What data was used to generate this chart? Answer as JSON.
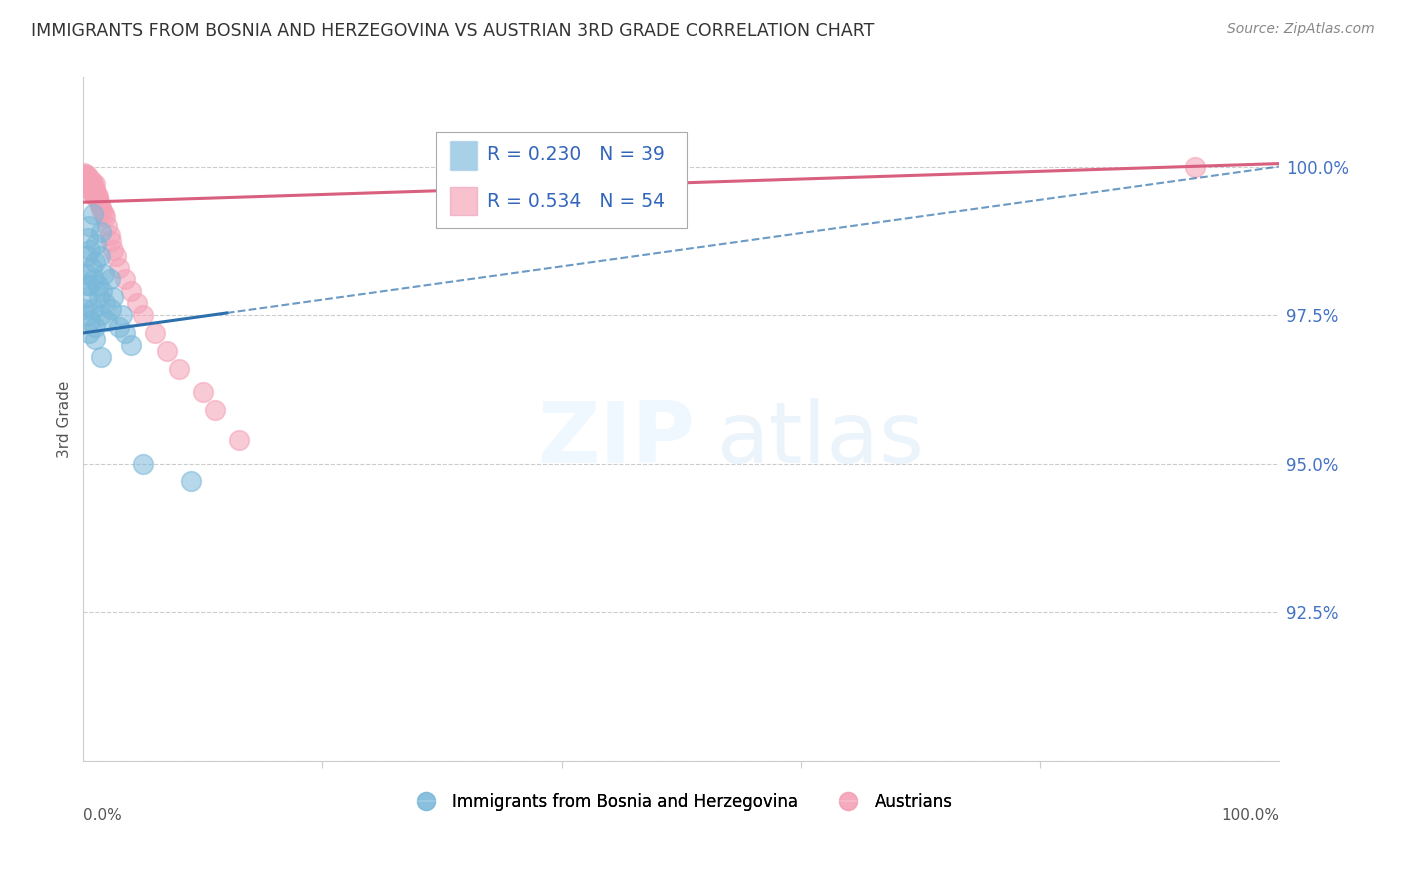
{
  "title": "IMMIGRANTS FROM BOSNIA AND HERZEGOVINA VS AUSTRIAN 3RD GRADE CORRELATION CHART",
  "source": "Source: ZipAtlas.com",
  "ylabel": "3rd Grade",
  "yticks": [
    90.0,
    92.5,
    95.0,
    97.5,
    100.0
  ],
  "ytick_labels": [
    "",
    "92.5%",
    "95.0%",
    "97.5%",
    "100.0%"
  ],
  "xlim": [
    0.0,
    100.0
  ],
  "ylim": [
    90.0,
    101.5
  ],
  "legend_blue_r": "R = 0.230",
  "legend_blue_n": "N = 39",
  "legend_pink_r": "R = 0.534",
  "legend_pink_n": "N = 54",
  "blue_color": "#7ab8d9",
  "pink_color": "#f4a0b5",
  "blue_line_color": "#2c6fad",
  "pink_line_color": "#d95f7f",
  "legend_label_blue": "Immigrants from Bosnia and Herzegovina",
  "legend_label_pink": "Austrians",
  "blue_x": [
    0.2,
    0.3,
    0.3,
    0.4,
    0.4,
    0.5,
    0.5,
    0.5,
    0.6,
    0.6,
    0.7,
    0.8,
    0.8,
    0.9,
    1.0,
    1.0,
    1.1,
    1.2,
    1.3,
    1.4,
    1.5,
    1.5,
    1.6,
    1.7,
    1.8,
    2.0,
    2.2,
    2.3,
    2.5,
    3.0,
    3.2,
    3.5,
    4.0,
    0.1,
    0.2,
    1.0,
    1.5,
    5.0,
    9.0
  ],
  "blue_y": [
    98.2,
    97.8,
    98.5,
    97.5,
    98.8,
    97.2,
    98.0,
    99.0,
    97.4,
    98.6,
    98.3,
    97.6,
    99.2,
    98.1,
    97.3,
    98.4,
    98.7,
    98.0,
    97.8,
    98.5,
    97.5,
    98.9,
    97.9,
    98.2,
    97.7,
    97.4,
    98.1,
    97.6,
    97.8,
    97.3,
    97.5,
    97.2,
    97.0,
    97.6,
    98.0,
    97.1,
    96.8,
    95.0,
    94.7
  ],
  "pink_x": [
    0.1,
    0.1,
    0.2,
    0.2,
    0.3,
    0.3,
    0.3,
    0.4,
    0.4,
    0.4,
    0.5,
    0.5,
    0.5,
    0.5,
    0.6,
    0.6,
    0.7,
    0.7,
    0.7,
    0.8,
    0.8,
    0.8,
    0.9,
    0.9,
    1.0,
    1.0,
    1.0,
    1.1,
    1.1,
    1.2,
    1.2,
    1.3,
    1.4,
    1.5,
    1.6,
    1.7,
    1.8,
    2.0,
    2.2,
    2.3,
    2.5,
    2.7,
    3.0,
    3.5,
    4.0,
    4.5,
    5.0,
    6.0,
    7.0,
    8.0,
    10.0,
    11.0,
    13.0,
    93.0
  ],
  "pink_y": [
    99.85,
    99.9,
    99.8,
    99.85,
    99.75,
    99.8,
    99.85,
    99.7,
    99.75,
    99.8,
    99.7,
    99.75,
    99.65,
    99.8,
    99.6,
    99.7,
    99.65,
    99.75,
    99.6,
    99.55,
    99.65,
    99.7,
    99.5,
    99.6,
    99.55,
    99.6,
    99.7,
    99.5,
    99.55,
    99.45,
    99.5,
    99.4,
    99.35,
    99.3,
    99.25,
    99.2,
    99.15,
    99.0,
    98.85,
    98.75,
    98.6,
    98.5,
    98.3,
    98.1,
    97.9,
    97.7,
    97.5,
    97.2,
    96.9,
    96.6,
    96.2,
    95.9,
    95.4,
    100.0
  ],
  "blue_trendline_x0": 0.0,
  "blue_trendline_y0": 97.2,
  "blue_trendline_x1": 100.0,
  "blue_trendline_y1": 100.0,
  "pink_trendline_x0": 0.0,
  "pink_trendline_y0": 99.4,
  "pink_trendline_x1": 100.0,
  "pink_trendline_y1": 100.05,
  "dashed_x0": 12.0,
  "dashed_x1": 100.0
}
